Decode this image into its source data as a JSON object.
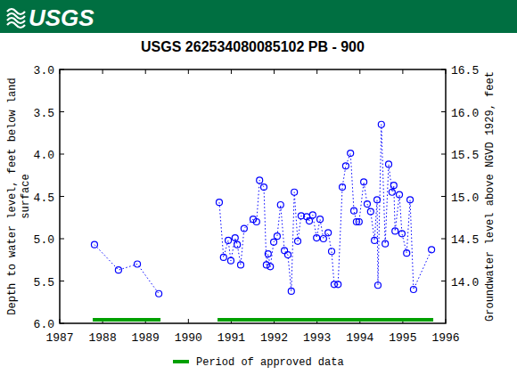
{
  "header": {
    "logo_text": "USGS"
  },
  "chart_data": {
    "type": "scatter",
    "title": "USGS 262534080085102 PB - 900",
    "y_label": [
      "Depth to water level, feet below land",
      "surface"
    ],
    "y2_label": "Groundwater level above NGVD 1929, feet",
    "x": [
      1987.81,
      1988.37,
      1988.81,
      1989.31,
      null,
      1990.72,
      1990.82,
      1990.93,
      1990.99,
      1991.09,
      1991.14,
      1991.22,
      1991.3,
      1991.51,
      1991.59,
      1991.66,
      1991.76,
      1991.82,
      1991.86,
      1991.91,
      1991.99,
      1992.07,
      1992.15,
      1992.24,
      1992.32,
      1992.4,
      1992.47,
      1992.55,
      1992.63,
      1992.76,
      1992.82,
      1992.9,
      1992.99,
      1993.07,
      1993.15,
      1993.26,
      1993.34,
      1993.4,
      1993.49,
      1993.59,
      1993.67,
      1993.78,
      1993.86,
      1993.92,
      1993.98,
      1994.09,
      1994.17,
      1994.25,
      1994.34,
      1994.4,
      1994.42,
      1994.5,
      1994.59,
      1994.67,
      1994.75,
      1994.79,
      1994.82,
      1994.92,
      1994.98,
      1995.09,
      1995.17,
      1995.25,
      1995.67
    ],
    "values": [
      5.07,
      5.37,
      5.3,
      5.65,
      null,
      4.57,
      5.22,
      5.02,
      5.26,
      4.99,
      5.07,
      5.31,
      4.88,
      4.77,
      4.8,
      4.31,
      4.39,
      5.31,
      5.18,
      5.33,
      5.04,
      4.97,
      4.6,
      5.14,
      5.19,
      5.62,
      4.45,
      5.03,
      4.73,
      4.74,
      4.79,
      4.72,
      4.99,
      4.77,
      5.0,
      4.93,
      5.15,
      5.54,
      5.54,
      4.39,
      4.14,
      3.99,
      4.67,
      4.8,
      4.8,
      4.33,
      4.59,
      4.68,
      5.02,
      4.54,
      5.55,
      3.65,
      5.06,
      4.12,
      4.45,
      4.37,
      4.91,
      4.48,
      4.94,
      5.17,
      4.54,
      5.6,
      5.13
    ],
    "color": "#0000ff",
    "marker": "circle",
    "line_style": "dotted",
    "xlim": [
      1987,
      1996
    ],
    "xticks": [
      1987,
      1988,
      1989,
      1990,
      1991,
      1992,
      1993,
      1994,
      1995,
      1996
    ],
    "ylim": [
      6.0,
      3.0
    ],
    "yticks": [
      {
        "value": 3,
        "label": "3.0"
      },
      3.5,
      {
        "value": 4,
        "label": "4.0"
      },
      4.5,
      {
        "value": 5,
        "label": "5.0"
      },
      5.5,
      {
        "value": 6,
        "label": "6.0"
      }
    ],
    "y2lim": [
      13.5,
      16.5
    ],
    "y2ticks": [
      {
        "value": 14,
        "label": "14.0"
      },
      14.5,
      {
        "value": 15,
        "label": "15.0"
      },
      15.5,
      {
        "value": 16,
        "label": "16.0"
      },
      16.5
    ],
    "grid": false,
    "legend": "bottom",
    "approved_periods": {
      "name": "Period of approved data",
      "color": "#00a000",
      "ranges": [
        [
          1987.77,
          1989.35
        ],
        [
          1990.68,
          1995.71
        ]
      ]
    }
  }
}
